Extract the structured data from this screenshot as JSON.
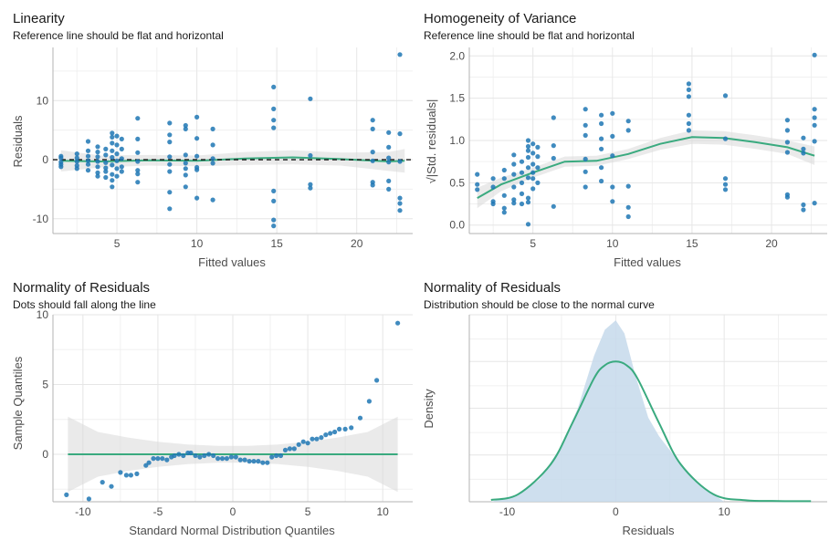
{
  "colors": {
    "point": "#1f77b4",
    "line": "#3aaa7f",
    "band": "#d9d9d9",
    "density_fill": "#c6d9eb",
    "grid": "#e6e6e6",
    "axis": "#b3b3b3"
  },
  "panels": [
    {
      "title": "Linearity",
      "subtitle": "Reference line should be flat and horizontal",
      "xlabel": "Fitted values",
      "ylabel": "Residuals"
    },
    {
      "title": "Homogeneity of Variance",
      "subtitle": "Reference line should be flat and horizontal",
      "xlabel": "Fitted values",
      "ylabel": "√|Std. residuals|"
    },
    {
      "title": "Normality of Residuals",
      "subtitle": "Dots should fall along the line",
      "xlabel": "Standard Normal Distribution Quantiles",
      "ylabel": "Sample Quantiles"
    },
    {
      "title": "Normality of Residuals",
      "subtitle": "Distribution should be close to the normal curve",
      "xlabel": "Residuals",
      "ylabel": "Density"
    }
  ],
  "chart_data": [
    {
      "type": "scatter",
      "xlim": [
        1,
        23.5
      ],
      "ylim": [
        -12.5,
        19
      ],
      "xticks": [
        5,
        10,
        15,
        20
      ],
      "yticks": [
        -10,
        0,
        10
      ],
      "grid": true,
      "reference_line": {
        "y": 0,
        "style": "dashed"
      },
      "points": [
        [
          1.5,
          0.6
        ],
        [
          1.5,
          0.3
        ],
        [
          1.5,
          -0.4
        ],
        [
          1.5,
          -0.8
        ],
        [
          1.5,
          -1.2
        ],
        [
          2.5,
          1.0
        ],
        [
          2.5,
          0.3
        ],
        [
          2.5,
          -0.3
        ],
        [
          2.5,
          -1.0
        ],
        [
          2.5,
          -1.5
        ],
        [
          3.2,
          3.1
        ],
        [
          3.2,
          1.5
        ],
        [
          3.2,
          0.6
        ],
        [
          3.2,
          -0.2
        ],
        [
          3.2,
          -0.8
        ],
        [
          3.2,
          -1.8
        ],
        [
          3.8,
          2.2
        ],
        [
          3.8,
          1.3
        ],
        [
          3.8,
          0.5
        ],
        [
          3.8,
          -0.3
        ],
        [
          3.8,
          -1.2
        ],
        [
          3.8,
          -2.2
        ],
        [
          3.8,
          -2.8
        ],
        [
          4.3,
          1.8
        ],
        [
          4.3,
          0.8
        ],
        [
          4.3,
          -0.5
        ],
        [
          4.3,
          -1.4
        ],
        [
          4.3,
          -2.0
        ],
        [
          4.3,
          -3.0
        ],
        [
          4.7,
          4.5
        ],
        [
          4.7,
          3.8
        ],
        [
          4.7,
          2.8
        ],
        [
          4.7,
          1.5
        ],
        [
          4.7,
          0.4
        ],
        [
          4.7,
          -0.9
        ],
        [
          4.7,
          -2.5
        ],
        [
          4.7,
          -3.5
        ],
        [
          4.7,
          -4.6
        ],
        [
          5.0,
          4.0
        ],
        [
          5.0,
          2.5
        ],
        [
          5.0,
          1.0
        ],
        [
          5.0,
          -0.2
        ],
        [
          5.0,
          -1.5
        ],
        [
          5.0,
          -2.8
        ],
        [
          5.3,
          3.5
        ],
        [
          5.3,
          1.8
        ],
        [
          5.3,
          0.2
        ],
        [
          5.3,
          -1.2
        ],
        [
          5.3,
          -2.0
        ],
        [
          6.3,
          7.0
        ],
        [
          6.3,
          3.5
        ],
        [
          6.3,
          1.2
        ],
        [
          6.3,
          -0.3
        ],
        [
          6.3,
          -1.8
        ],
        [
          6.3,
          -2.4
        ],
        [
          6.3,
          -3.8
        ],
        [
          8.3,
          6.2
        ],
        [
          8.3,
          4.2
        ],
        [
          8.3,
          3.0
        ],
        [
          8.3,
          0.5
        ],
        [
          8.3,
          -0.8
        ],
        [
          8.3,
          -2.0
        ],
        [
          8.3,
          -5.5
        ],
        [
          8.3,
          -8.3
        ],
        [
          9.3,
          5.8
        ],
        [
          9.3,
          5.2
        ],
        [
          9.3,
          0.8
        ],
        [
          9.3,
          -0.6
        ],
        [
          9.3,
          -1.5
        ],
        [
          9.3,
          -2.6
        ],
        [
          9.3,
          -4.6
        ],
        [
          10.0,
          7.2
        ],
        [
          10.0,
          3.6
        ],
        [
          10.0,
          0.6
        ],
        [
          10.0,
          -1.3
        ],
        [
          10.0,
          -1.7
        ],
        [
          10.0,
          -6.5
        ],
        [
          11.0,
          5.2
        ],
        [
          11.0,
          2.5
        ],
        [
          11.0,
          0.2
        ],
        [
          11.0,
          -0.6
        ],
        [
          11.0,
          -6.8
        ],
        [
          14.8,
          12.3
        ],
        [
          14.8,
          8.6
        ],
        [
          14.8,
          6.7
        ],
        [
          14.8,
          5.4
        ],
        [
          14.8,
          -5.3
        ],
        [
          14.8,
          -7.0
        ],
        [
          14.8,
          -10.2
        ],
        [
          14.8,
          -11.2
        ],
        [
          17.1,
          10.3
        ],
        [
          17.1,
          0.7
        ],
        [
          17.1,
          -4.2
        ],
        [
          17.1,
          -4.8
        ],
        [
          21.0,
          6.7
        ],
        [
          21.0,
          5.2
        ],
        [
          21.0,
          1.3
        ],
        [
          21.0,
          -0.2
        ],
        [
          21.0,
          -3.8
        ],
        [
          21.0,
          -4.3
        ],
        [
          22.0,
          4.6
        ],
        [
          22.0,
          2.1
        ],
        [
          22.0,
          0.3
        ],
        [
          22.0,
          -0.4
        ],
        [
          22.0,
          -3.6
        ],
        [
          22.0,
          -5.0
        ],
        [
          22.7,
          17.8
        ],
        [
          22.7,
          4.4
        ],
        [
          22.7,
          -0.3
        ],
        [
          22.7,
          -6.5
        ],
        [
          22.7,
          -7.4
        ],
        [
          22.7,
          -8.6
        ]
      ],
      "smooth": {
        "x": [
          1.5,
          4,
          7,
          10,
          13,
          16,
          19,
          22,
          23
        ],
        "y": [
          -0.2,
          -0.3,
          -0.1,
          -0.2,
          0.2,
          0.4,
          0.1,
          -0.3,
          -0.2
        ]
      }
    },
    {
      "type": "scatter",
      "xlim": [
        1,
        23.5
      ],
      "ylim": [
        -0.1,
        2.1
      ],
      "xticks": [
        5,
        10,
        15,
        20
      ],
      "yticks": [
        0.0,
        0.5,
        1.0,
        1.5,
        2.0
      ],
      "grid": true,
      "points": [
        [
          1.5,
          0.6
        ],
        [
          1.5,
          0.48
        ],
        [
          1.5,
          0.42
        ],
        [
          2.5,
          0.55
        ],
        [
          2.5,
          0.45
        ],
        [
          2.5,
          0.28
        ],
        [
          2.5,
          0.25
        ],
        [
          3.2,
          0.65
        ],
        [
          3.2,
          0.55
        ],
        [
          3.2,
          0.35
        ],
        [
          3.2,
          0.2
        ],
        [
          3.2,
          0.15
        ],
        [
          3.8,
          0.83
        ],
        [
          3.8,
          0.72
        ],
        [
          3.8,
          0.6
        ],
        [
          3.8,
          0.45
        ],
        [
          3.8,
          0.3
        ],
        [
          3.8,
          0.26
        ],
        [
          4.3,
          0.75
        ],
        [
          4.3,
          0.62
        ],
        [
          4.3,
          0.5
        ],
        [
          4.3,
          0.37
        ],
        [
          4.3,
          0.25
        ],
        [
          4.7,
          1.0
        ],
        [
          4.7,
          0.93
        ],
        [
          4.7,
          0.88
        ],
        [
          4.7,
          0.8
        ],
        [
          4.7,
          0.68
        ],
        [
          4.7,
          0.56
        ],
        [
          4.7,
          0.32
        ],
        [
          4.7,
          0.27
        ],
        [
          4.7,
          0.01
        ],
        [
          5.0,
          0.96
        ],
        [
          5.0,
          0.85
        ],
        [
          5.0,
          0.72
        ],
        [
          5.0,
          0.62
        ],
        [
          5.0,
          0.55
        ],
        [
          5.0,
          0.43
        ],
        [
          5.3,
          0.92
        ],
        [
          5.3,
          0.81
        ],
        [
          5.3,
          0.68
        ],
        [
          5.3,
          0.5
        ],
        [
          6.3,
          1.27
        ],
        [
          6.3,
          0.94
        ],
        [
          6.3,
          0.79
        ],
        [
          6.3,
          0.22
        ],
        [
          8.3,
          1.37
        ],
        [
          8.3,
          1.18
        ],
        [
          8.3,
          1.06
        ],
        [
          8.3,
          0.78
        ],
        [
          8.3,
          0.63
        ],
        [
          8.3,
          0.45
        ],
        [
          9.3,
          1.3
        ],
        [
          9.3,
          1.2
        ],
        [
          9.3,
          1.02
        ],
        [
          9.3,
          0.9
        ],
        [
          9.3,
          0.68
        ],
        [
          9.3,
          0.52
        ],
        [
          10.0,
          1.32
        ],
        [
          10.0,
          1.05
        ],
        [
          10.0,
          0.82
        ],
        [
          10.0,
          0.45
        ],
        [
          10.0,
          0.28
        ],
        [
          11.0,
          1.23
        ],
        [
          11.0,
          1.12
        ],
        [
          11.0,
          0.46
        ],
        [
          11.0,
          0.21
        ],
        [
          11.0,
          0.1
        ],
        [
          14.8,
          1.67
        ],
        [
          14.8,
          1.6
        ],
        [
          14.8,
          1.52
        ],
        [
          14.8,
          1.3
        ],
        [
          14.8,
          1.2
        ],
        [
          14.8,
          1.12
        ],
        [
          17.1,
          1.53
        ],
        [
          17.1,
          1.02
        ],
        [
          17.1,
          0.55
        ],
        [
          17.1,
          0.48
        ],
        [
          17.1,
          0.42
        ],
        [
          21.0,
          1.24
        ],
        [
          21.0,
          1.12
        ],
        [
          21.0,
          0.98
        ],
        [
          21.0,
          0.86
        ],
        [
          21.0,
          0.36
        ],
        [
          21.0,
          0.33
        ],
        [
          22.0,
          1.03
        ],
        [
          22.0,
          0.9
        ],
        [
          22.0,
          0.85
        ],
        [
          22.0,
          0.24
        ],
        [
          22.0,
          0.18
        ],
        [
          22.7,
          2.01
        ],
        [
          22.7,
          1.37
        ],
        [
          22.7,
          1.27
        ],
        [
          22.7,
          1.18
        ],
        [
          22.7,
          0.99
        ],
        [
          22.7,
          0.26
        ]
      ],
      "smooth": {
        "x": [
          1.5,
          3,
          5,
          7,
          9,
          11,
          13,
          15,
          17,
          19,
          21,
          22.7
        ],
        "y": [
          0.32,
          0.48,
          0.62,
          0.75,
          0.76,
          0.84,
          0.96,
          1.04,
          1.03,
          0.98,
          0.92,
          0.82
        ]
      }
    },
    {
      "type": "scatter",
      "xlim": [
        -12,
        12
      ],
      "ylim": [
        -3.4,
        10
      ],
      "xticks": [
        -10,
        -5,
        0,
        5,
        10
      ],
      "yticks": [
        0,
        5,
        10
      ],
      "grid": true,
      "reference_line": {
        "y": 0,
        "style": "solid"
      },
      "points": [
        [
          -11.1,
          -2.9
        ],
        [
          -9.6,
          -3.2
        ],
        [
          -8.7,
          -2.0
        ],
        [
          -8.1,
          -2.3
        ],
        [
          -7.5,
          -1.3
        ],
        [
          -7.1,
          -1.5
        ],
        [
          -6.8,
          -1.5
        ],
        [
          -6.4,
          -1.4
        ],
        [
          -5.8,
          -0.8
        ],
        [
          -5.6,
          -0.6
        ],
        [
          -5.3,
          -0.3
        ],
        [
          -5.0,
          -0.3
        ],
        [
          -4.7,
          -0.3
        ],
        [
          -4.4,
          -0.4
        ],
        [
          -4.1,
          -0.2
        ],
        [
          -3.9,
          -0.1
        ],
        [
          -3.6,
          0.0
        ],
        [
          -3.3,
          -0.1
        ],
        [
          -3.0,
          0.1
        ],
        [
          -2.8,
          0.1
        ],
        [
          -2.5,
          -0.1
        ],
        [
          -2.2,
          -0.2
        ],
        [
          -1.9,
          -0.1
        ],
        [
          -1.6,
          0.0
        ],
        [
          -1.3,
          -0.1
        ],
        [
          -1.0,
          -0.3
        ],
        [
          -0.7,
          -0.3
        ],
        [
          -0.4,
          -0.3
        ],
        [
          -0.1,
          -0.2
        ],
        [
          0.2,
          -0.2
        ],
        [
          0.5,
          -0.4
        ],
        [
          0.8,
          -0.4
        ],
        [
          1.1,
          -0.5
        ],
        [
          1.4,
          -0.5
        ],
        [
          1.7,
          -0.5
        ],
        [
          2.0,
          -0.6
        ],
        [
          2.3,
          -0.6
        ],
        [
          2.6,
          -0.2
        ],
        [
          2.9,
          -0.1
        ],
        [
          3.2,
          -0.1
        ],
        [
          3.5,
          0.3
        ],
        [
          3.8,
          0.4
        ],
        [
          4.1,
          0.4
        ],
        [
          4.4,
          0.7
        ],
        [
          4.7,
          0.9
        ],
        [
          5.0,
          0.8
        ],
        [
          5.3,
          1.1
        ],
        [
          5.6,
          1.1
        ],
        [
          5.9,
          1.2
        ],
        [
          6.2,
          1.4
        ],
        [
          6.5,
          1.5
        ],
        [
          6.8,
          1.6
        ],
        [
          7.1,
          1.8
        ],
        [
          7.5,
          1.8
        ],
        [
          7.9,
          1.9
        ],
        [
          8.5,
          2.6
        ],
        [
          9.1,
          3.8
        ],
        [
          9.6,
          5.3
        ],
        [
          11.0,
          9.4
        ]
      ],
      "band_upper": [
        [
          -11,
          2.7
        ],
        [
          -9,
          1.6
        ],
        [
          -7,
          1.2
        ],
        [
          -5,
          0.9
        ],
        [
          -3,
          0.7
        ],
        [
          -1,
          0.6
        ],
        [
          0,
          0.6
        ],
        [
          1,
          0.6
        ],
        [
          3,
          0.7
        ],
        [
          5,
          0.9
        ],
        [
          7,
          1.2
        ],
        [
          9,
          1.6
        ],
        [
          11,
          2.7
        ]
      ],
      "band_lower": [
        [
          -11,
          -2.7
        ],
        [
          -9,
          -1.6
        ],
        [
          -7,
          -1.2
        ],
        [
          -5,
          -0.9
        ],
        [
          -3,
          -0.7
        ],
        [
          -1,
          -0.6
        ],
        [
          0,
          -0.6
        ],
        [
          1,
          -0.6
        ],
        [
          3,
          -0.7
        ],
        [
          5,
          -0.9
        ],
        [
          7,
          -1.2
        ],
        [
          9,
          -1.6
        ],
        [
          11,
          -2.7
        ]
      ]
    },
    {
      "type": "area",
      "xlim": [
        -13.5,
        19.5
      ],
      "ylim": [
        0,
        1
      ],
      "xticks": [
        -10,
        0,
        10
      ],
      "grid": true,
      "density": {
        "x": [
          -11.5,
          -9,
          -7,
          -5,
          -3.5,
          -2,
          -1,
          0,
          0.8,
          1.8,
          3,
          4,
          6,
          8,
          10
        ],
        "y": [
          0,
          0.04,
          0.12,
          0.3,
          0.5,
          0.78,
          0.92,
          0.97,
          0.9,
          0.68,
          0.45,
          0.35,
          0.2,
          0.08,
          0
        ]
      },
      "normal_curve": {
        "x": [
          -11.5,
          -9,
          -6,
          -4,
          -2,
          -1,
          0,
          1,
          2,
          4,
          6,
          9,
          12,
          15,
          18
        ],
        "y": [
          0.01,
          0.04,
          0.2,
          0.42,
          0.66,
          0.73,
          0.75,
          0.73,
          0.66,
          0.42,
          0.2,
          0.04,
          0.008,
          0.004,
          0.003
        ]
      }
    }
  ]
}
